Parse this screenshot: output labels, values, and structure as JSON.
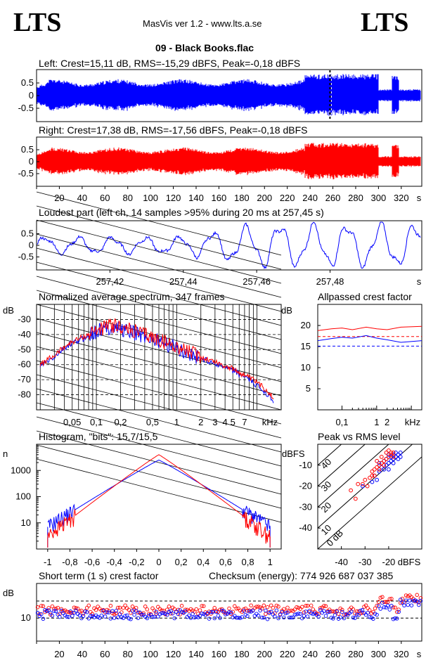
{
  "header": {
    "logo_left": "LTS",
    "logo_right": "LTS",
    "app_title": "MasVis ver 1.2 - www.lts.a.se",
    "track_title": "09 - Black Books.flac"
  },
  "chart_data": [
    {
      "id": "left",
      "type": "line",
      "title": "Left: Crest=15,11 dB, RMS=-15,29 dBFS, Peak=-0,18 dBFS",
      "series": [
        {
          "name": "left channel",
          "color": "#0000ff"
        }
      ],
      "ylim": [
        -1,
        1
      ],
      "yticks": [
        "0.5",
        "0",
        "-0.5"
      ],
      "marker_time_s": 257.45
    },
    {
      "id": "right",
      "type": "line",
      "title": "Right: Crest=17,38 dB, RMS=-17,56 dBFS, Peak=-0,18 dBFS",
      "series": [
        {
          "name": "right channel",
          "color": "#ff0000"
        }
      ],
      "ylim": [
        -1,
        1
      ],
      "yticks": [
        "0.5",
        "0",
        "-0.5"
      ],
      "xlim": [
        0,
        338
      ],
      "xticks": [
        "20",
        "40",
        "60",
        "80",
        "100",
        "120",
        "140",
        "160",
        "180",
        "200",
        "220",
        "240",
        "260",
        "280",
        "300",
        "320"
      ],
      "xunit": "s"
    },
    {
      "id": "loudest",
      "type": "line",
      "title": "Loudest part (left  ch, 14 samples >95% during 20 ms at 257,45 s)",
      "series": [
        {
          "name": "left channel",
          "color": "#0000ff"
        }
      ],
      "ylim": [
        -1,
        1
      ],
      "yticks": [
        "0.5",
        "0",
        "-0.5"
      ],
      "xlim": [
        257.4,
        257.505
      ],
      "xticks": [
        "257,42",
        "257,44",
        "257,46",
        "257,48"
      ],
      "xunit": "s"
    },
    {
      "id": "spectrum",
      "type": "line",
      "title": "Normalized average spectrum, 347 frames",
      "ylabel": "dB",
      "ylim": [
        -90,
        -20
      ],
      "yticks": [
        "-30",
        "-40",
        "-50",
        "-60",
        "-70",
        "-80"
      ],
      "xticks": [
        "0,05",
        "0,1",
        "0,2",
        "0,5",
        "1",
        "2",
        "3",
        "4",
        "5",
        "7"
      ],
      "xunit": "kHz",
      "series": [
        {
          "name": "left",
          "color": "#0000ff",
          "points": [
            [
              0.02,
              -61
            ],
            [
              0.03,
              -55
            ],
            [
              0.04,
              -49
            ],
            [
              0.05,
              -46
            ],
            [
              0.06,
              -44
            ],
            [
              0.08,
              -41
            ],
            [
              0.1,
              -38
            ],
            [
              0.13,
              -36
            ],
            [
              0.16,
              -35
            ],
            [
              0.2,
              -36
            ],
            [
              0.25,
              -38
            ],
            [
              0.3,
              -39
            ],
            [
              0.4,
              -41
            ],
            [
              0.5,
              -43
            ],
            [
              0.7,
              -46
            ],
            [
              1,
              -49
            ],
            [
              1.5,
              -53
            ],
            [
              2,
              -56
            ],
            [
              3,
              -59
            ],
            [
              4,
              -62
            ],
            [
              5,
              -64
            ],
            [
              7,
              -68
            ],
            [
              10,
              -74
            ],
            [
              14,
              -80
            ],
            [
              16,
              -84
            ]
          ]
        },
        {
          "name": "right",
          "color": "#ff0000",
          "points": [
            [
              0.02,
              -60
            ],
            [
              0.03,
              -54
            ],
            [
              0.04,
              -48
            ],
            [
              0.05,
              -45
            ],
            [
              0.06,
              -43
            ],
            [
              0.08,
              -40
            ],
            [
              0.1,
              -37
            ],
            [
              0.13,
              -35
            ],
            [
              0.16,
              -34
            ],
            [
              0.2,
              -35
            ],
            [
              0.25,
              -37
            ],
            [
              0.3,
              -38
            ],
            [
              0.4,
              -40
            ],
            [
              0.5,
              -42
            ],
            [
              0.7,
              -45
            ],
            [
              1,
              -48
            ],
            [
              1.5,
              -52
            ],
            [
              2,
              -55
            ],
            [
              3,
              -58
            ],
            [
              4,
              -61
            ],
            [
              5,
              -63
            ],
            [
              7,
              -67
            ],
            [
              10,
              -72
            ],
            [
              14,
              -78
            ],
            [
              16,
              -82
            ]
          ]
        }
      ]
    },
    {
      "id": "allpassed",
      "type": "line",
      "title": "Allpassed crest factor",
      "ylabel": "dB",
      "ylim": [
        0,
        25
      ],
      "yticks": [
        "20",
        "15",
        "10",
        "5"
      ],
      "xticks": [
        "0,1",
        "1",
        "2"
      ],
      "xunit": "kHz",
      "series": [
        {
          "name": "right",
          "color": "#ff0000",
          "points": [
            [
              0.02,
              18.8
            ],
            [
              0.05,
              19.2
            ],
            [
              0.1,
              19.4
            ],
            [
              0.2,
              19.0
            ],
            [
              0.5,
              19.6
            ],
            [
              1,
              19.2
            ],
            [
              2,
              19.0
            ],
            [
              5,
              19.6
            ],
            [
              20,
              19.8
            ]
          ]
        },
        {
          "name": "left",
          "color": "#0000ff",
          "points": [
            [
              0.02,
              16.4
            ],
            [
              0.05,
              16.9
            ],
            [
              0.1,
              17.2
            ],
            [
              0.2,
              17.0
            ],
            [
              0.5,
              17.6
            ],
            [
              1,
              17.0
            ],
            [
              2,
              16.6
            ],
            [
              5,
              16.0
            ],
            [
              20,
              16.4
            ]
          ]
        }
      ],
      "reference_lines": [
        {
          "value": 17.38,
          "color": "#ff0000"
        },
        {
          "value": 15.11,
          "color": "#0000ff"
        }
      ]
    },
    {
      "id": "histogram",
      "type": "line",
      "title": "Histogram, \"bits\": 15,7/15,5",
      "ylabel": "n",
      "yscale": "log",
      "ylim": [
        1,
        10000
      ],
      "yticks": [
        "1000",
        "100",
        "10"
      ],
      "xlim": [
        -1.1,
        1.1
      ],
      "xticks": [
        "-1",
        "-0,8",
        "-0,6",
        "-0,4",
        "-0,2",
        "0",
        "0,2",
        "0,4",
        "0,6",
        "0,8",
        "1"
      ],
      "series": [
        {
          "name": "left",
          "color": "#0000ff",
          "peak": 2500,
          "edge": 7
        },
        {
          "name": "right",
          "color": "#ff0000",
          "peak": 4000,
          "edge": 3
        }
      ]
    },
    {
      "id": "peak_vs_rms",
      "type": "scatter",
      "title": "Peak vs RMS level",
      "ylabel": "dBFS",
      "xlabel": "dBFS",
      "xlim": [
        -50,
        -6
      ],
      "ylim": [
        -50,
        0
      ],
      "yticks": [
        "-10",
        "-20",
        "-30",
        "-40"
      ],
      "xticks": [
        "-40",
        "-30",
        "-20"
      ],
      "crest_lines": [
        "0 dB",
        "10",
        "20",
        "30",
        "40"
      ],
      "series": [
        {
          "name": "left",
          "color": "#0000ff",
          "points": [
            [
              -26,
              -15
            ],
            [
              -24,
              -13
            ],
            [
              -22,
              -12
            ],
            [
              -21,
              -10
            ],
            [
              -20,
              -9
            ],
            [
              -19,
              -8
            ],
            [
              -18,
              -7
            ],
            [
              -17,
              -6
            ],
            [
              -23,
              -11
            ],
            [
              -25,
              -17
            ],
            [
              -27,
              -18
            ],
            [
              -22,
              -8
            ],
            [
              -20,
              -12
            ],
            [
              -19,
              -6
            ],
            [
              -18,
              -5
            ],
            [
              -17,
              -4
            ],
            [
              -16,
              -5
            ],
            [
              -15,
              -4
            ],
            [
              -21,
              -7
            ],
            [
              -24,
              -9
            ],
            [
              -31,
              -20
            ],
            [
              -20,
              -5
            ],
            [
              -18,
              -9
            ],
            [
              -16,
              -7
            ],
            [
              -15,
              -6
            ]
          ]
        },
        {
          "name": "right",
          "color": "#ff0000",
          "points": [
            [
              -36,
              -22
            ],
            [
              -33,
              -19
            ],
            [
              -30,
              -17
            ],
            [
              -28,
              -16
            ],
            [
              -27,
              -13
            ],
            [
              -26,
              -12
            ],
            [
              -25,
              -11
            ],
            [
              -24,
              -10
            ],
            [
              -23,
              -9
            ],
            [
              -22,
              -8
            ],
            [
              -21,
              -7
            ],
            [
              -20,
              -6
            ],
            [
              -19,
              -5
            ],
            [
              -18,
              -4
            ],
            [
              -34,
              -26
            ],
            [
              -29,
              -20
            ],
            [
              -27,
              -15
            ],
            [
              -25,
              -8
            ],
            [
              -23,
              -6
            ],
            [
              -21,
              -4
            ],
            [
              -20,
              -3
            ],
            [
              -19,
              -4
            ],
            [
              -18,
              -6
            ],
            [
              -24,
              -12
            ],
            [
              -26,
              -15
            ],
            [
              -31,
              -19
            ],
            [
              -22,
              -10
            ]
          ]
        }
      ]
    },
    {
      "id": "short_term_crest",
      "type": "scatter",
      "title": "Short term (1 s) crest factor",
      "checksum": "Checksum (energy):   774 926 687 037 385",
      "ylabel": "dB",
      "yticks": [
        "10"
      ],
      "ylim": [
        0,
        25
      ],
      "xlim": [
        0,
        338
      ],
      "xticks": [
        "20",
        "40",
        "60",
        "80",
        "100",
        "120",
        "140",
        "160",
        "180",
        "200",
        "220",
        "240",
        "260",
        "280",
        "300",
        "320"
      ],
      "xunit": "s",
      "reference_lines": [
        {
          "value": 17.38,
          "color": "#000"
        },
        {
          "value": 10,
          "color": "#000"
        }
      ],
      "series": [
        {
          "name": "right",
          "color": "#ff0000"
        },
        {
          "name": "left",
          "color": "#0000ff"
        }
      ]
    }
  ]
}
